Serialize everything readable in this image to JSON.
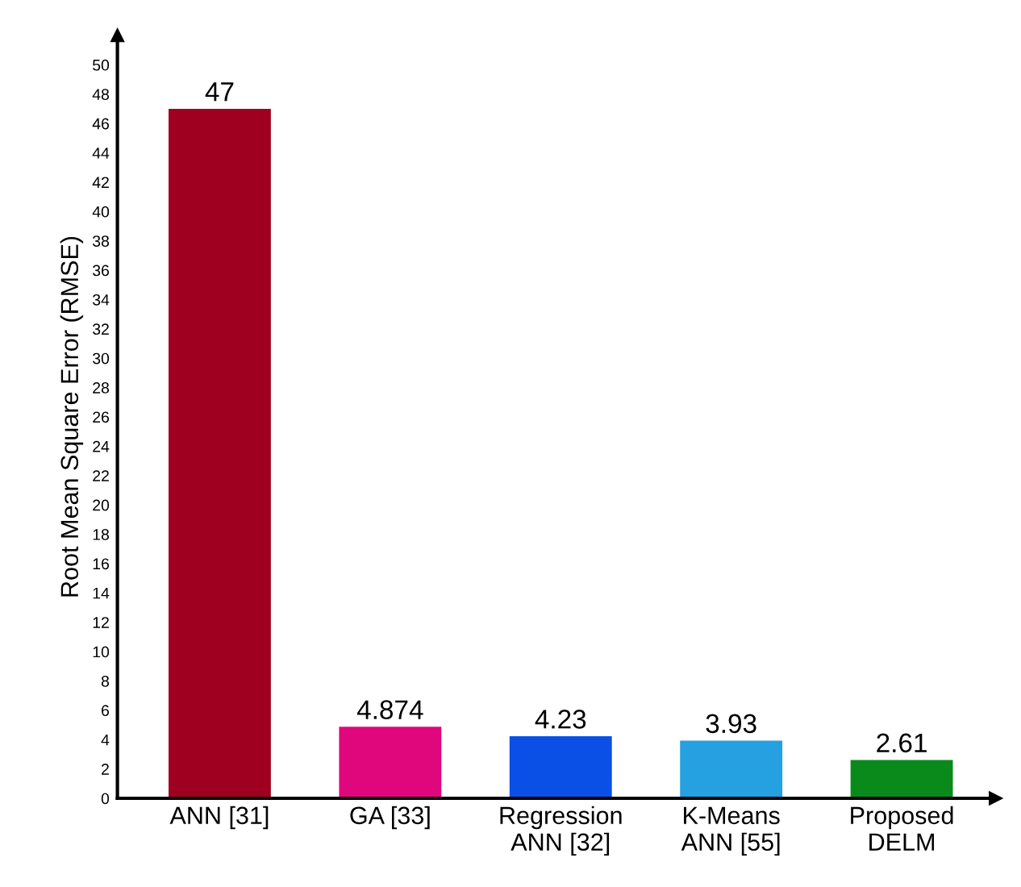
{
  "chart_data": {
    "type": "bar",
    "ylabel": "Root Mean Square Error (RMSE)",
    "categories": [
      "ANN [31]",
      "GA [33]",
      "Regression\nANN [32]",
      "K-Means\nANN [55]",
      "Proposed\nDELM"
    ],
    "values": [
      47,
      4.874,
      4.23,
      3.93,
      2.61
    ],
    "colors": [
      "#a00020",
      "#e0077d",
      "#0a50e6",
      "#25a0e0",
      "#0a8a1a"
    ],
    "data_labels": true,
    "ylim": [
      0,
      52
    ],
    "yticks": [
      0,
      2,
      4,
      6,
      8,
      10,
      12,
      14,
      16,
      18,
      20,
      22,
      24,
      26,
      28,
      30,
      32,
      34,
      36,
      38,
      40,
      42,
      44,
      46,
      48,
      50
    ],
    "grid": false,
    "legend": false
  }
}
